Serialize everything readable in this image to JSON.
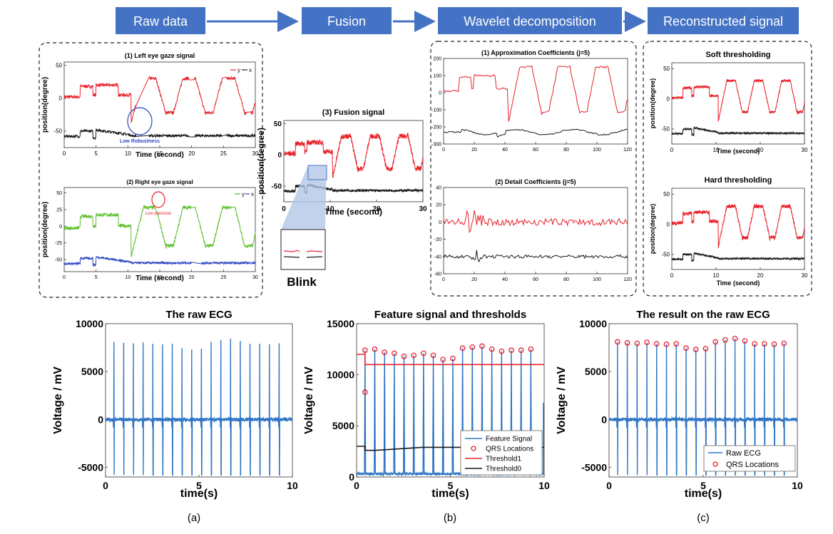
{
  "colors": {
    "step_fill": "#4472c4",
    "red": "#e8212b",
    "black": "#1a1a1a",
    "green": "#5bbf2a",
    "blue": "#2b45c0",
    "ecg": "#2e75c6",
    "marker": "#e8212b"
  },
  "pipeline": {
    "steps": [
      "Raw data",
      "Fusion",
      "Wavelet  decomposition",
      "Reconstructed signal"
    ],
    "blink_label": "Blink",
    "annotations": {
      "low_robustness": "Low Robustness",
      "low_precision": "Low precision"
    }
  },
  "chart_data": [
    {
      "type": "line",
      "title": "(1) Left eye gaze signal",
      "xlabel": "Time (second)",
      "ylabel": "position(degree)",
      "xlim": [
        0,
        30
      ],
      "ylim": [
        -75,
        55
      ],
      "xticks": [
        "0",
        "5",
        "10",
        "15",
        "20",
        "25",
        "30"
      ],
      "yticks": [
        "50",
        "0",
        "-50"
      ],
      "legend_labels": [
        "y",
        "x"
      ],
      "series": [
        {
          "name": "y",
          "color": "#e8212b"
        },
        {
          "name": "x",
          "color": "#1a1a1a"
        }
      ]
    },
    {
      "type": "line",
      "title": "(2) Right eye gaze signal",
      "xlabel": "Time (second)",
      "ylabel": "position(degree)",
      "xlim": [
        0,
        30
      ],
      "ylim": [
        -68,
        58
      ],
      "xticks": [
        "0",
        "5",
        "10",
        "15",
        "20",
        "25",
        "30"
      ],
      "yticks": [
        "50",
        "25",
        "0",
        "-25",
        "-50"
      ],
      "legend_labels": [
        "y",
        "x"
      ],
      "series": [
        {
          "name": "y",
          "color": "#5bbf2a"
        },
        {
          "name": "x",
          "color": "#2b45c0"
        }
      ]
    },
    {
      "type": "line",
      "title": "(3) Fusion signal",
      "xlabel": "Time (second)",
      "ylabel": "position(degree)",
      "xlim": [
        0,
        30
      ],
      "ylim": [
        -75,
        55
      ],
      "xticks": [
        "0",
        "10",
        "20",
        "30"
      ],
      "yticks": [
        "50",
        "0",
        "-50"
      ]
    },
    {
      "type": "line",
      "title": "(1) Approximation Coefficients (j=5)",
      "xlim": [
        0,
        120
      ],
      "ylim": [
        -300,
        200
      ],
      "xticks": [
        "0",
        "20",
        "40",
        "60",
        "80",
        "100",
        "120"
      ],
      "yticks": [
        "200",
        "100",
        "0",
        "-100",
        "-200",
        "-300"
      ]
    },
    {
      "type": "line",
      "title": "(2) Detail Coefficients (j=5)",
      "xlim": [
        0,
        120
      ],
      "ylim": [
        -60,
        40
      ],
      "xticks": [
        "0",
        "20",
        "40",
        "60",
        "80",
        "100",
        "120"
      ],
      "yticks": [
        "40",
        "20",
        "0",
        "-20",
        "-40",
        "-60"
      ]
    },
    {
      "type": "line",
      "title": "Soft thresholding",
      "xlabel": "Time (second)",
      "ylabel": "position(degree)",
      "xlim": [
        0,
        30
      ],
      "ylim": [
        -75,
        60
      ],
      "xticks": [
        "0",
        "10",
        "20",
        "30"
      ],
      "yticks": [
        "50",
        "0",
        "-50"
      ]
    },
    {
      "type": "line",
      "title": "Hard thresholding",
      "xlabel": "Time (second)",
      "ylabel": "position(degree)",
      "xlim": [
        0,
        30
      ],
      "ylim": [
        -75,
        60
      ],
      "xticks": [
        "0",
        "10",
        "20",
        "30"
      ],
      "yticks": [
        "50",
        "0",
        "-50"
      ]
    },
    {
      "type": "line",
      "title": "The raw ECG",
      "xlabel": "time(s)",
      "ylabel": "Voltage / mV",
      "caption": "(a)",
      "xlim": [
        0,
        10
      ],
      "ylim": [
        -6000,
        10000
      ],
      "xticks": [
        "0",
        "5",
        "10"
      ],
      "yticks": [
        "10000",
        "5000",
        "0",
        "-5000"
      ],
      "peaks_t": [
        0.45,
        0.97,
        1.49,
        2.01,
        2.53,
        3.05,
        3.57,
        4.09,
        4.61,
        5.13,
        5.65,
        6.17,
        6.69,
        7.21,
        7.73,
        8.25,
        8.77,
        9.29
      ],
      "peaks_v": [
        8100,
        8000,
        7950,
        8050,
        7900,
        7850,
        7900,
        7450,
        7300,
        7400,
        8100,
        8300,
        8450,
        8200,
        7900,
        7900,
        7850,
        7950
      ]
    },
    {
      "type": "line",
      "title": "Feature signal and thresholds",
      "xlabel": "time(s)",
      "ylabel": "Voltage / mV",
      "caption": "(b)",
      "xlim": [
        0,
        10
      ],
      "ylim": [
        0,
        15000
      ],
      "xticks": [
        "0",
        "5",
        "10"
      ],
      "yticks": [
        "15000",
        "10000",
        "5000",
        "0"
      ],
      "legend": [
        "Feature Signal",
        "QRS Locations",
        "Threshold1",
        "Threshold0"
      ],
      "threshold1": 11000,
      "threshold1_initial": 12000,
      "threshold0_initial": 3000,
      "threshold0": 2600,
      "threshold0_final": 2900,
      "qrs_t": [
        0.45,
        0.97,
        1.49,
        2.01,
        2.53,
        3.05,
        3.57,
        4.09,
        4.61,
        5.13,
        5.65,
        6.17,
        6.69,
        7.21,
        7.73,
        8.25,
        8.77,
        9.29
      ],
      "qrs_v": [
        12400,
        12500,
        12200,
        12100,
        11800,
        11900,
        12100,
        11900,
        11500,
        11600,
        12600,
        12700,
        12800,
        12500,
        12300,
        12400,
        12400,
        12500
      ]
    },
    {
      "type": "line",
      "title": "The result on the raw ECG",
      "xlabel": "time(s)",
      "ylabel": "Voltage / mV",
      "caption": "(c)",
      "xlim": [
        0,
        10
      ],
      "ylim": [
        -6000,
        10000
      ],
      "xticks": [
        "0",
        "5",
        "10"
      ],
      "yticks": [
        "10000",
        "5000",
        "0",
        "-5000"
      ],
      "legend": [
        "Raw ECG",
        "QRS Locations"
      ]
    }
  ]
}
